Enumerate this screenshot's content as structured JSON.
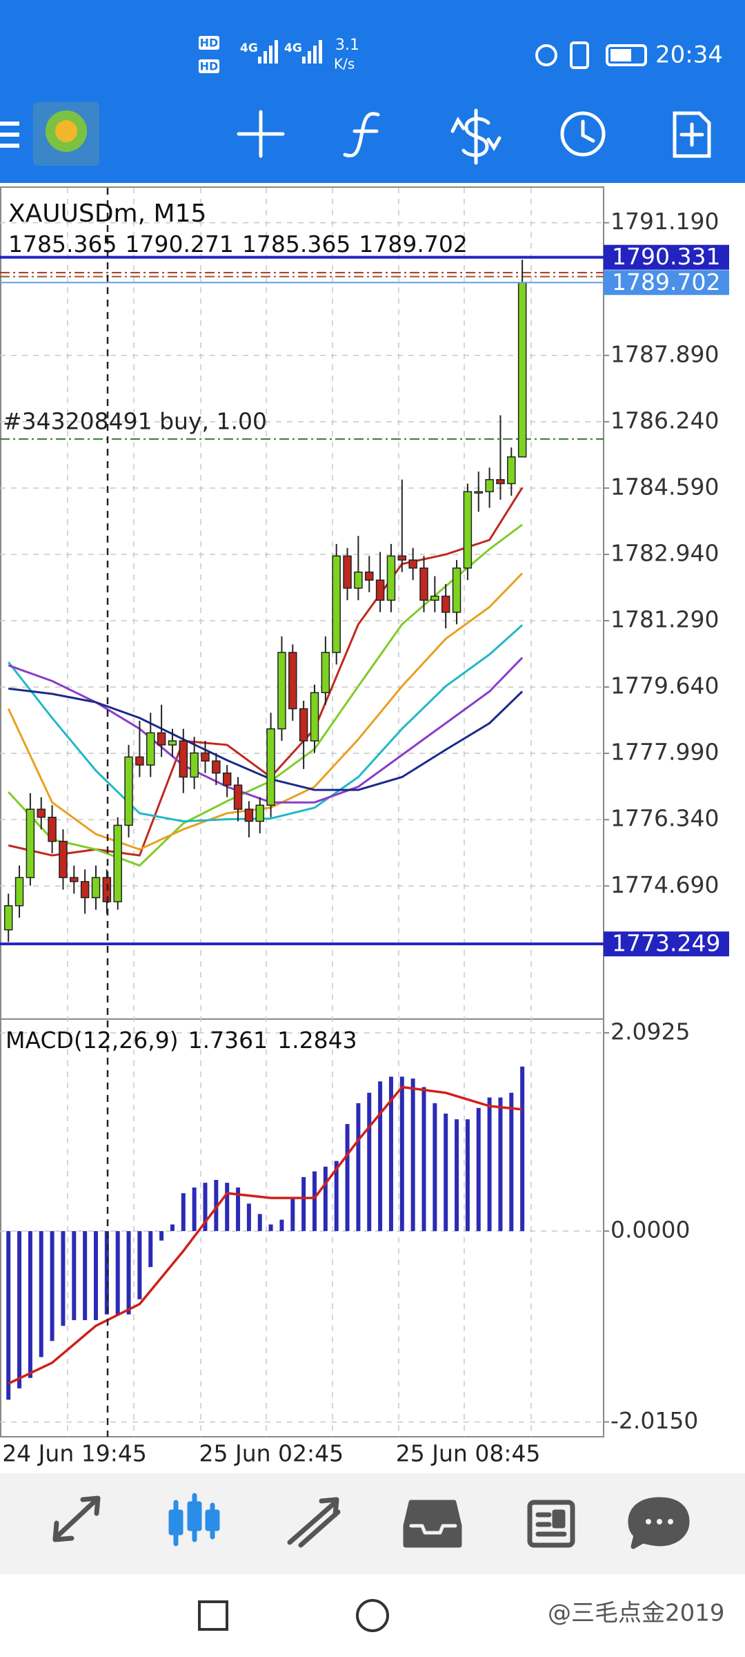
{
  "status_bar": {
    "sim_1": "HD",
    "sim_2": "HD",
    "signal_1": "4G",
    "signal_2": "4G",
    "network_speed": "3.1",
    "speed_unit": "K/s",
    "time": "20:34"
  },
  "chart_data": [
    {
      "type": "candlestick",
      "title": "XAUUSDm, M15",
      "categories": [
        "24 Jun 19:45",
        null,
        null,
        null,
        null,
        null,
        null,
        null,
        null,
        null,
        null,
        null,
        null,
        null,
        null,
        null,
        null,
        null,
        "25 Jun 02:45",
        null,
        null,
        null,
        null,
        null,
        null,
        null,
        null,
        null,
        null,
        null,
        null,
        null,
        null,
        null,
        null,
        null,
        "25 Jun 08:45",
        null,
        null,
        null,
        null,
        null,
        null,
        null,
        null,
        null,
        null,
        null
      ],
      "open": [
        1773.6,
        1774.2,
        1774.9,
        1776.6,
        1776.4,
        1775.8,
        1774.9,
        1774.8,
        1774.4,
        1774.9,
        1774.3,
        1776.2,
        1777.9,
        1777.7,
        1778.5,
        1778.2,
        1778.3,
        1777.4,
        1778.0,
        1777.8,
        1777.5,
        1777.2,
        1776.6,
        1776.3,
        1776.7,
        1778.6,
        1780.5,
        1779.1,
        1778.3,
        1779.5,
        1780.5,
        1782.9,
        1782.1,
        1782.5,
        1782.3,
        1781.8,
        1782.9,
        1782.8,
        1782.6,
        1781.8,
        1781.9,
        1781.5,
        1782.6,
        1784.5,
        1784.5,
        1784.8,
        1784.7,
        1785.365
      ],
      "high": [
        1774.5,
        1775.2,
        1777.0,
        1776.9,
        1776.7,
        1776.1,
        1775.2,
        1775.1,
        1775.2,
        1775.1,
        1776.4,
        1778.2,
        1778.8,
        1779.0,
        1779.2,
        1778.6,
        1778.6,
        1778.4,
        1778.3,
        1778.0,
        1777.7,
        1777.4,
        1776.8,
        1776.9,
        1779.0,
        1780.9,
        1780.7,
        1779.3,
        1779.7,
        1780.9,
        1783.2,
        1783.1,
        1783.4,
        1782.9,
        1783.0,
        1783.2,
        1784.8,
        1783.1,
        1782.9,
        1782.4,
        1782.2,
        1782.8,
        1784.7,
        1785.0,
        1785.1,
        1786.4,
        1785.6,
        1790.271
      ],
      "low": [
        1773.3,
        1773.9,
        1774.7,
        1776.1,
        1775.5,
        1774.6,
        1774.5,
        1774.0,
        1774.1,
        1774.0,
        1774.1,
        1775.9,
        1777.4,
        1777.4,
        1777.9,
        1777.9,
        1777.0,
        1777.1,
        1777.5,
        1777.2,
        1776.9,
        1776.3,
        1775.9,
        1776.0,
        1776.4,
        1778.3,
        1778.8,
        1777.6,
        1778.0,
        1779.2,
        1780.2,
        1781.8,
        1781.8,
        1782.0,
        1781.5,
        1781.5,
        1782.5,
        1782.3,
        1781.5,
        1781.5,
        1781.1,
        1781.2,
        1782.3,
        1784.0,
        1784.1,
        1784.3,
        1784.4,
        1785.365
      ],
      "close": [
        1774.2,
        1774.9,
        1776.6,
        1776.4,
        1775.8,
        1774.9,
        1774.8,
        1774.4,
        1774.9,
        1774.3,
        1776.2,
        1777.9,
        1777.7,
        1778.5,
        1778.2,
        1778.3,
        1777.4,
        1778.0,
        1777.8,
        1777.5,
        1777.2,
        1776.6,
        1776.3,
        1776.7,
        1778.6,
        1780.5,
        1779.1,
        1778.3,
        1779.5,
        1780.5,
        1782.9,
        1782.1,
        1782.5,
        1782.3,
        1781.8,
        1782.9,
        1782.8,
        1782.6,
        1781.8,
        1781.9,
        1781.5,
        1782.6,
        1784.5,
        1784.5,
        1784.8,
        1784.7,
        1785.365,
        1789.702
      ],
      "up_color": "#7ed321",
      "down_color": "#c0271f",
      "ylim": [
        1771.38,
        1792.06
      ],
      "yticks": [
        {
          "value": 1791.19,
          "label": "1791.190"
        },
        {
          "value": 1787.89,
          "label": "1787.890"
        },
        {
          "value": 1786.24,
          "label": "1786.240"
        },
        {
          "value": 1784.59,
          "label": "1784.590"
        },
        {
          "value": 1782.94,
          "label": "1782.940"
        },
        {
          "value": 1781.29,
          "label": "1781.290"
        },
        {
          "value": 1779.64,
          "label": "1779.640"
        },
        {
          "value": 1777.99,
          "label": "1777.990"
        },
        {
          "value": 1776.34,
          "label": "1776.340"
        },
        {
          "value": 1774.69,
          "label": "1774.690"
        }
      ],
      "grid": true,
      "moving_averages": {
        "x": [
          0,
          4,
          8,
          12,
          16,
          20,
          24,
          28,
          32,
          36,
          40,
          44,
          47
        ],
        "series": [
          {
            "color": "#c0281e",
            "values": [
              1775.7,
              1775.45,
              1775.6,
              1775.45,
              1778.3,
              1778.2,
              1777.4,
              1778.6,
              1781.2,
              1782.7,
              1782.94,
              1783.3,
              1784.6
            ]
          },
          {
            "color": "#7fcc2a",
            "values": [
              1777.03,
              1775.85,
              1775.6,
              1775.2,
              1776.25,
              1776.8,
              1777.3,
              1778.1,
              1779.66,
              1781.2,
              1782.15,
              1783.07,
              1783.68
            ]
          },
          {
            "color": "#e8a020",
            "values": [
              1779.1,
              1776.77,
              1775.98,
              1775.6,
              1776.1,
              1776.5,
              1776.64,
              1777.16,
              1778.34,
              1779.66,
              1780.84,
              1781.63,
              1782.47
            ]
          },
          {
            "color": "#20b8c8",
            "values": [
              1780.26,
              1778.87,
              1777.56,
              1776.5,
              1776.3,
              1776.35,
              1776.37,
              1776.64,
              1777.4,
              1778.6,
              1779.66,
              1780.45,
              1781.18
            ]
          },
          {
            "color": "#8a3cc8",
            "values": [
              1780.18,
              1779.79,
              1779.26,
              1778.6,
              1777.69,
              1777.16,
              1776.77,
              1776.77,
              1777.16,
              1777.95,
              1778.74,
              1779.53,
              1780.37
            ]
          },
          {
            "color": "#1a2a8a",
            "values": [
              1779.6,
              1779.47,
              1779.26,
              1778.87,
              1778.34,
              1777.82,
              1777.35,
              1777.08,
              1777.08,
              1777.4,
              1778.08,
              1778.74,
              1779.53
            ]
          }
        ]
      },
      "levels": [
        {
          "value": 1790.331,
          "color": "#2323c0",
          "box_color": "#2323c0"
        },
        {
          "value": 1789.702,
          "color": "#5a9ef0",
          "box_color": "#4a90e8"
        },
        {
          "value": 1773.249,
          "color": "#2323c0",
          "box_color": "#2323c0"
        }
      ],
      "order_lines": [
        {
          "label": "#343208491 buy, 1.00",
          "value": 1785.81,
          "color": "#2e7d2e"
        },
        {
          "value": 1789.95,
          "color": "#b03020"
        },
        {
          "value": 1789.85,
          "color": "#8b5a2b"
        }
      ]
    },
    {
      "type": "macd",
      "title": "MACD(12,26,9)",
      "color": "#2b2bb5",
      "values": [
        -1.78,
        -1.66,
        -1.55,
        -1.33,
        -1.16,
        -1.0,
        -0.94,
        -0.94,
        -0.94,
        -0.88,
        -0.88,
        -0.88,
        -0.72,
        -0.38,
        -0.1,
        0.07,
        0.4,
        0.46,
        0.51,
        0.54,
        0.51,
        0.46,
        0.29,
        0.18,
        0.07,
        0.12,
        0.35,
        0.57,
        0.63,
        0.68,
        0.74,
        1.13,
        1.35,
        1.46,
        1.58,
        1.63,
        1.63,
        1.61,
        1.52,
        1.35,
        1.24,
        1.18,
        1.18,
        1.3,
        1.41,
        1.41,
        1.46,
        1.7361
      ],
      "signal": {
        "color": "#d0201a",
        "x": [
          0,
          4,
          8,
          12,
          16,
          20,
          24,
          28,
          32,
          36,
          40,
          44,
          47
        ],
        "values": [
          -1.61,
          -1.39,
          -1.0,
          -0.77,
          -0.21,
          0.4,
          0.35,
          0.35,
          0.96,
          1.52,
          1.46,
          1.32,
          1.2843
        ]
      },
      "ylim": [
        -2.171,
        2.238
      ],
      "yticks": [
        2.0925,
        {
          "value": 0,
          "label": "0.0000"
        },
        {
          "value": -2.015,
          "label": "-2.0150"
        }
      ]
    }
  ],
  "watermark": "@三毛点金2019"
}
